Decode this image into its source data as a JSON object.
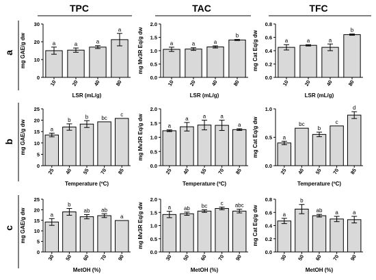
{
  "colors": {
    "bar_fill": "#d9d9d9",
    "stroke": "#000000",
    "background": "#ffffff"
  },
  "column_headers": [
    "TPC",
    "TAC",
    "TFC"
  ],
  "row_labels": [
    "a",
    "b",
    "c"
  ],
  "chart_data": [
    {
      "type": "bar",
      "row": "a",
      "col": "TPC",
      "categories": [
        "10",
        "20",
        "40",
        "80"
      ],
      "values": [
        15.0,
        15.3,
        17.0,
        21.2
      ],
      "errors": [
        2.0,
        1.2,
        0.8,
        3.5
      ],
      "letters": [
        "a",
        "a",
        "a",
        "a"
      ],
      "ylim": [
        0,
        30
      ],
      "yticks": [
        "0",
        "10",
        "20",
        "30"
      ],
      "ylabel": "mg GAE/g dw",
      "xlabel": "LSR (mL/g)"
    },
    {
      "type": "bar",
      "row": "a",
      "col": "TAC",
      "categories": [
        "10",
        "20",
        "40",
        "80"
      ],
      "values": [
        1.05,
        1.06,
        1.14,
        1.4
      ],
      "errors": [
        0.08,
        0.05,
        0.04,
        0.02
      ],
      "letters": [
        "a",
        "a",
        "a",
        "b"
      ],
      "ylim": [
        0,
        2.0
      ],
      "yticks": [
        "0.0",
        "0.5",
        "1.0",
        "1.5",
        "2.0"
      ],
      "ylabel": "mg Mv3R Eq/g dw",
      "xlabel": "LSR (mL/g)"
    },
    {
      "type": "bar",
      "row": "a",
      "col": "TFC",
      "categories": [
        "10",
        "20",
        "40",
        "80"
      ],
      "values": [
        0.45,
        0.48,
        0.45,
        0.64
      ],
      "errors": [
        0.04,
        0.01,
        0.05,
        0.01
      ],
      "letters": [
        "a",
        "a",
        "a",
        "b"
      ],
      "ylim": [
        0,
        0.8
      ],
      "yticks": [
        "0.0",
        "0.2",
        "0.4",
        "0.6",
        "0.8"
      ],
      "ylabel": "mg Cat Eq/g dw",
      "xlabel": "LSR (mL/g)"
    },
    {
      "type": "bar",
      "row": "b",
      "col": "TPC",
      "categories": [
        "25",
        "40",
        "55",
        "70",
        "85"
      ],
      "values": [
        13.5,
        17.0,
        18.3,
        19.3,
        20.8
      ],
      "errors": [
        0.8,
        1.4,
        1.5,
        0.0,
        0.0
      ],
      "letters": [
        "a",
        "b",
        "b",
        "bc",
        "c"
      ],
      "ylim": [
        0,
        25
      ],
      "yticks": [
        "0",
        "5",
        "10",
        "15",
        "20",
        "25"
      ],
      "ylabel": "mg GAE/g dw",
      "xlabel": "Temperature (ºC)"
    },
    {
      "type": "bar",
      "row": "b",
      "col": "TAC",
      "categories": [
        "25",
        "40",
        "55",
        "70",
        "85"
      ],
      "values": [
        1.23,
        1.37,
        1.43,
        1.42,
        1.27
      ],
      "errors": [
        0.03,
        0.15,
        0.17,
        0.18,
        0.03
      ],
      "letters": [
        "a",
        "a",
        "a",
        "a",
        "a"
      ],
      "ylim": [
        0,
        2.0
      ],
      "yticks": [
        "0.0",
        "0.5",
        "1.0",
        "1.5",
        "2.0"
      ],
      "ylabel": "mg Mv3R Eq/g dw",
      "xlabel": "Temperature (ºC)"
    },
    {
      "type": "bar",
      "row": "b",
      "col": "TFC",
      "categories": [
        "25",
        "40",
        "55",
        "70",
        "85"
      ],
      "values": [
        0.4,
        0.66,
        0.55,
        0.7,
        0.89
      ],
      "errors": [
        0.03,
        0.0,
        0.04,
        0.0,
        0.06
      ],
      "letters": [
        "a",
        "bc",
        "b",
        "c",
        "d"
      ],
      "ylim": [
        0,
        1.0
      ],
      "yticks": [
        "0.0",
        "0.5",
        "1.0"
      ],
      "ylabel": "mg Cat Eq/g dw",
      "xlabel": "Temperature (ºC)"
    },
    {
      "type": "bar",
      "row": "c",
      "col": "TPC",
      "categories": [
        "30",
        "50",
        "60",
        "70",
        "90"
      ],
      "values": [
        14.2,
        19.0,
        16.7,
        17.2,
        14.9
      ],
      "errors": [
        1.6,
        1.6,
        1.0,
        0.9,
        0.0
      ],
      "letters": [
        "a",
        "b",
        "ab",
        "ab",
        "a"
      ],
      "ylim": [
        0,
        25
      ],
      "yticks": [
        "0",
        "5",
        "10",
        "15",
        "20",
        "25"
      ],
      "ylabel": "mg GAE/g dw",
      "xlabel": "MetOH (%)"
    },
    {
      "type": "bar",
      "row": "c",
      "col": "TAC",
      "categories": [
        "30",
        "50",
        "60",
        "70",
        "90"
      ],
      "values": [
        1.42,
        1.45,
        1.55,
        1.65,
        1.55
      ],
      "errors": [
        0.12,
        0.06,
        0.05,
        0.05,
        0.07
      ],
      "letters": [
        "a",
        "ab",
        "bc",
        "c",
        "abc"
      ],
      "ylim": [
        0,
        2.0
      ],
      "yticks": [
        "0.0",
        "0.5",
        "1.0",
        "1.5",
        "2.0"
      ],
      "ylabel": "mg Mv3R Eq/g dw",
      "xlabel": "MetOH (%)"
    },
    {
      "type": "bar",
      "row": "c",
      "col": "TFC",
      "categories": [
        "30",
        "50",
        "60",
        "70",
        "90"
      ],
      "values": [
        0.47,
        0.65,
        0.55,
        0.5,
        0.49
      ],
      "errors": [
        0.04,
        0.07,
        0.02,
        0.04,
        0.05
      ],
      "letters": [
        "a",
        "b",
        "ab",
        "a",
        "a"
      ],
      "ylim": [
        0,
        0.8
      ],
      "yticks": [
        "0.0",
        "0.2",
        "0.4",
        "0.6",
        "0.8"
      ],
      "ylabel": "mg Cat Eq/g dw",
      "xlabel": "MetOH (%)"
    }
  ]
}
